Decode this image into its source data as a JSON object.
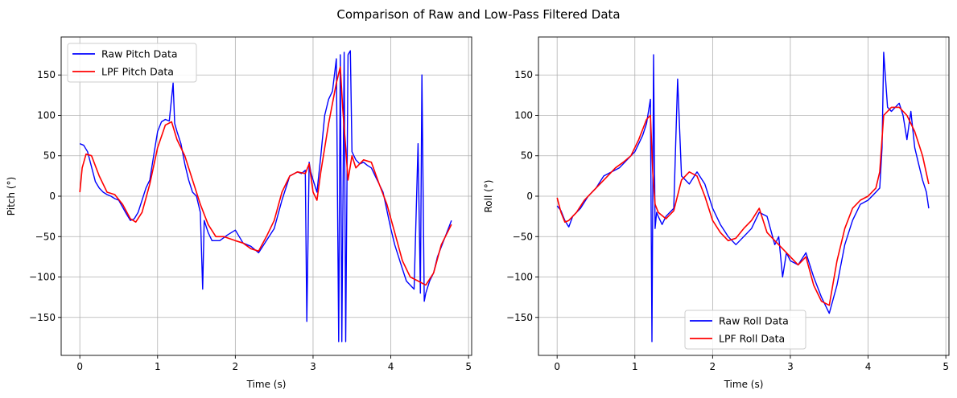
{
  "figure": {
    "suptitle": "Comparison of Raw and Low-Pass Filtered Data"
  },
  "colors": {
    "raw": "#0000ff",
    "lpf": "#ff0000",
    "grid": "#b0b0b0",
    "axes": "#000000"
  },
  "chart_data": [
    {
      "type": "line",
      "xlabel": "Time (s)",
      "ylabel": "Pitch (°)",
      "xlim": [
        -0.24,
        5.04
      ],
      "ylim": [
        -197,
        197
      ],
      "xticks": [
        0,
        1,
        2,
        3,
        4,
        5
      ],
      "yticks": [
        -150,
        -100,
        -50,
        0,
        50,
        100,
        150
      ],
      "grid": true,
      "legend_position": "upper-left",
      "series": [
        {
          "name": "Raw Pitch Data",
          "color": "#0000ff",
          "x": [
            0,
            0.05,
            0.1,
            0.2,
            0.25,
            0.3,
            0.35,
            0.4,
            0.45,
            0.5,
            0.6,
            0.65,
            0.7,
            0.75,
            0.8,
            0.85,
            0.9,
            0.95,
            1.0,
            1.05,
            1.1,
            1.15,
            1.2,
            1.22,
            1.25,
            1.3,
            1.35,
            1.4,
            1.45,
            1.5,
            1.55,
            1.58,
            1.6,
            1.65,
            1.7,
            1.8,
            1.9,
            2.0,
            2.1,
            2.2,
            2.3,
            2.4,
            2.5,
            2.6,
            2.7,
            2.8,
            2.85,
            2.9,
            2.92,
            2.95,
            2.97,
            3.0,
            3.05,
            3.1,
            3.15,
            3.2,
            3.25,
            3.3,
            3.33,
            3.35,
            3.37,
            3.4,
            3.42,
            3.45,
            3.48,
            3.5,
            3.55,
            3.6,
            3.65,
            3.7,
            3.75,
            3.8,
            3.9,
            4.0,
            4.05,
            4.1,
            4.15,
            4.2,
            4.25,
            4.3,
            4.35,
            4.38,
            4.4,
            4.43,
            4.45,
            4.5,
            4.55,
            4.6,
            4.7,
            4.78
          ],
          "y": [
            65,
            63,
            55,
            18,
            10,
            5,
            2,
            0,
            -3,
            -5,
            -22,
            -30,
            -28,
            -20,
            -5,
            10,
            20,
            50,
            80,
            92,
            95,
            93,
            140,
            90,
            80,
            65,
            40,
            20,
            5,
            0,
            -20,
            -115,
            -30,
            -45,
            -55,
            -55,
            -48,
            -42,
            -58,
            -62,
            -70,
            -55,
            -40,
            -5,
            25,
            30,
            28,
            32,
            -155,
            42,
            30,
            20,
            5,
            50,
            100,
            120,
            130,
            170,
            -180,
            175,
            -180,
            178,
            -180,
            175,
            180,
            55,
            45,
            40,
            42,
            38,
            35,
            25,
            5,
            -40,
            -60,
            -75,
            -90,
            -105,
            -110,
            -115,
            65,
            -120,
            150,
            -130,
            -120,
            -105,
            -95,
            -75,
            -50,
            -30
          ]
        },
        {
          "name": "LPF Pitch Data",
          "color": "#ff0000",
          "x": [
            0,
            0.03,
            0.08,
            0.15,
            0.25,
            0.35,
            0.45,
            0.55,
            0.65,
            0.72,
            0.8,
            0.9,
            1.0,
            1.1,
            1.18,
            1.25,
            1.35,
            1.45,
            1.55,
            1.65,
            1.75,
            1.85,
            2.0,
            2.1,
            2.2,
            2.3,
            2.4,
            2.5,
            2.6,
            2.7,
            2.8,
            2.9,
            2.95,
            3.0,
            3.05,
            3.1,
            3.2,
            3.3,
            3.35,
            3.38,
            3.42,
            3.45,
            3.5,
            3.55,
            3.65,
            3.75,
            3.85,
            3.95,
            4.05,
            4.15,
            4.25,
            4.35,
            4.45,
            4.55,
            4.65,
            4.78
          ],
          "y": [
            5,
            35,
            52,
            50,
            25,
            5,
            2,
            -10,
            -28,
            -32,
            -20,
            15,
            60,
            88,
            92,
            70,
            50,
            20,
            -10,
            -35,
            -50,
            -50,
            -55,
            -58,
            -65,
            -68,
            -50,
            -30,
            5,
            25,
            30,
            28,
            40,
            5,
            -5,
            30,
            90,
            140,
            160,
            110,
            60,
            20,
            50,
            35,
            45,
            42,
            15,
            -10,
            -45,
            -80,
            -100,
            -105,
            -110,
            -95,
            -60,
            -35
          ]
        }
      ]
    },
    {
      "type": "line",
      "xlabel": "Time (s)",
      "ylabel": "Roll (°)",
      "xlim": [
        -0.24,
        5.04
      ],
      "ylim": [
        -197,
        197
      ],
      "xticks": [
        0,
        1,
        2,
        3,
        4,
        5
      ],
      "yticks": [
        -150,
        -100,
        -50,
        0,
        50,
        100,
        150
      ],
      "grid": true,
      "legend_position": "lower-center",
      "series": [
        {
          "name": "Raw Roll Data",
          "color": "#0000ff",
          "x": [
            0,
            0.05,
            0.1,
            0.15,
            0.2,
            0.3,
            0.4,
            0.5,
            0.6,
            0.7,
            0.8,
            0.9,
            1.0,
            1.05,
            1.1,
            1.15,
            1.2,
            1.22,
            1.24,
            1.26,
            1.28,
            1.3,
            1.35,
            1.4,
            1.5,
            1.55,
            1.6,
            1.65,
            1.7,
            1.8,
            1.9,
            2.0,
            2.1,
            2.2,
            2.3,
            2.4,
            2.5,
            2.6,
            2.7,
            2.8,
            2.85,
            2.9,
            2.95,
            3.0,
            3.1,
            3.2,
            3.3,
            3.4,
            3.5,
            3.6,
            3.7,
            3.8,
            3.9,
            4.0,
            4.05,
            4.1,
            4.15,
            4.18,
            4.2,
            4.25,
            4.3,
            4.35,
            4.4,
            4.45,
            4.5,
            4.55,
            4.6,
            4.65,
            4.7,
            4.75,
            4.78
          ],
          "y": [
            -12,
            -18,
            -30,
            -38,
            -25,
            -15,
            0,
            10,
            25,
            30,
            35,
            45,
            55,
            65,
            75,
            90,
            120,
            -180,
            175,
            -40,
            -20,
            -25,
            -35,
            -25,
            -15,
            145,
            25,
            20,
            15,
            30,
            15,
            -15,
            -35,
            -50,
            -60,
            -50,
            -40,
            -20,
            -25,
            -60,
            -50,
            -100,
            -70,
            -80,
            -85,
            -70,
            -100,
            -125,
            -145,
            -110,
            -60,
            -30,
            -10,
            -5,
            0,
            5,
            10,
            60,
            178,
            110,
            105,
            110,
            115,
            100,
            70,
            105,
            60,
            40,
            20,
            5,
            -15
          ]
        },
        {
          "name": " LPF Roll Data",
          "color": "#ff0000",
          "x": [
            0,
            0.05,
            0.1,
            0.15,
            0.25,
            0.35,
            0.5,
            0.65,
            0.75,
            0.85,
            0.95,
            1.05,
            1.15,
            1.2,
            1.23,
            1.26,
            1.3,
            1.4,
            1.5,
            1.6,
            1.7,
            1.8,
            1.9,
            2.0,
            2.1,
            2.2,
            2.3,
            2.4,
            2.5,
            2.6,
            2.7,
            2.8,
            2.9,
            3.0,
            3.1,
            3.2,
            3.3,
            3.4,
            3.5,
            3.6,
            3.7,
            3.8,
            3.9,
            4.0,
            4.1,
            4.15,
            4.2,
            4.3,
            4.4,
            4.5,
            4.6,
            4.7,
            4.78
          ],
          "y": [
            -2,
            -20,
            -32,
            -30,
            -20,
            -5,
            10,
            25,
            35,
            42,
            50,
            70,
            95,
            100,
            30,
            -10,
            -20,
            -28,
            -18,
            20,
            30,
            25,
            0,
            -30,
            -45,
            -55,
            -52,
            -40,
            -30,
            -15,
            -45,
            -55,
            -65,
            -75,
            -85,
            -75,
            -110,
            -130,
            -135,
            -80,
            -40,
            -15,
            -5,
            0,
            10,
            30,
            100,
            110,
            110,
            100,
            80,
            50,
            15
          ]
        }
      ]
    }
  ]
}
